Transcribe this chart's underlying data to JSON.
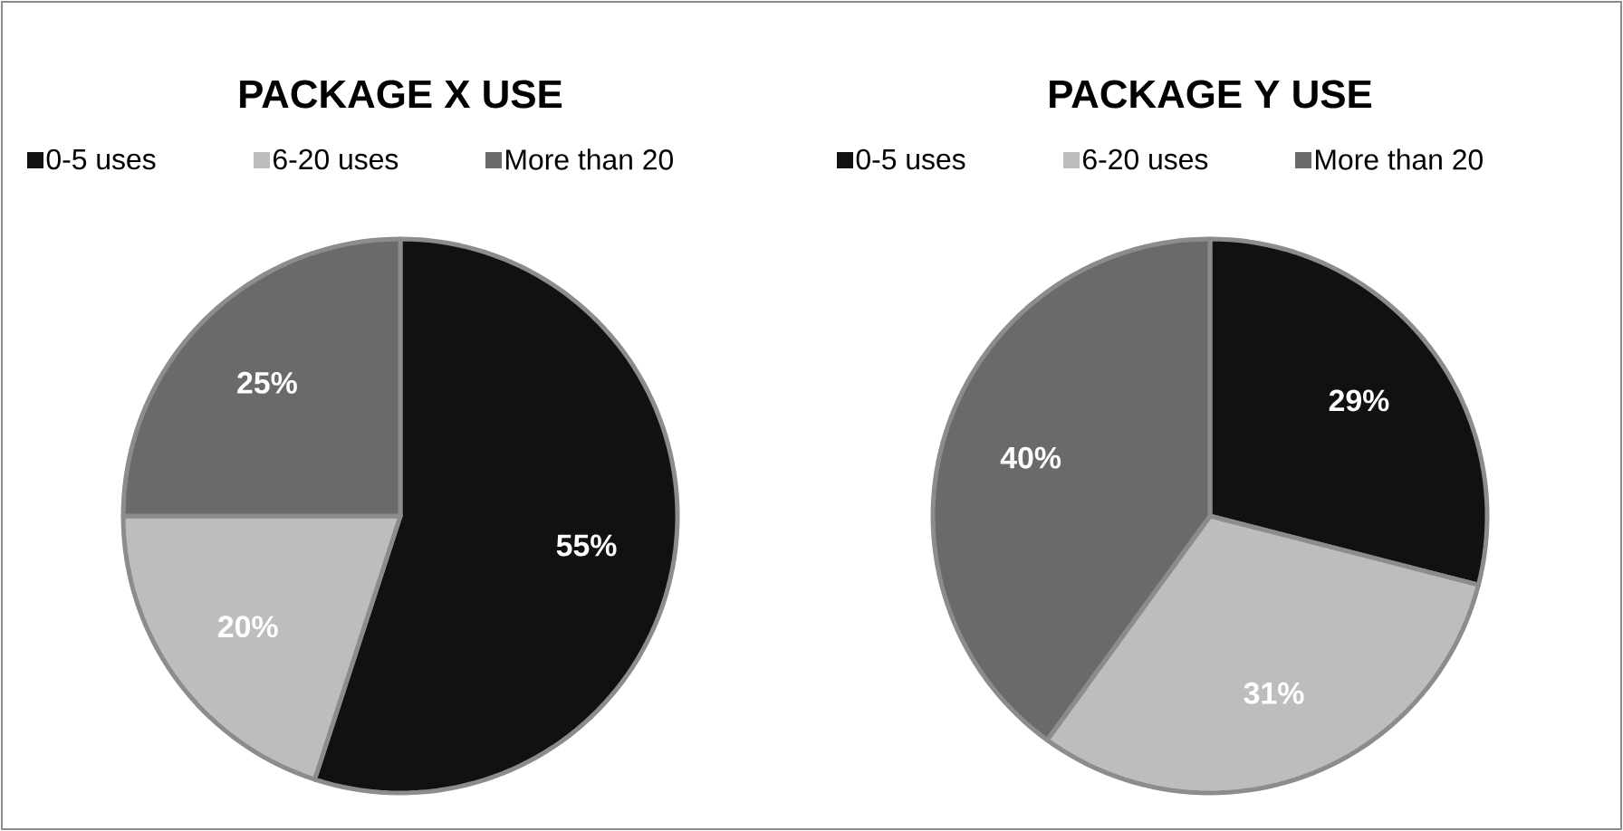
{
  "chart_data": [
    {
      "type": "pie",
      "title": "PACKAGE  X USE",
      "categories": [
        "0-5 uses",
        "6-20 uses",
        "More than 20"
      ],
      "values": [
        55,
        20,
        25
      ],
      "colors": [
        "#111111",
        "#bdbdbd",
        "#6a6a6a"
      ],
      "value_labels": [
        "55%",
        "20%",
        "25%"
      ],
      "legend": "top"
    },
    {
      "type": "pie",
      "title": "PACKAGE  Y USE",
      "categories": [
        "0-5 uses",
        "6-20 uses",
        "More than 20"
      ],
      "values": [
        29,
        31,
        40
      ],
      "colors": [
        "#111111",
        "#bdbdbd",
        "#6a6a6a"
      ],
      "value_labels": [
        "29%",
        "31%",
        "40%"
      ],
      "legend": "top"
    }
  ]
}
